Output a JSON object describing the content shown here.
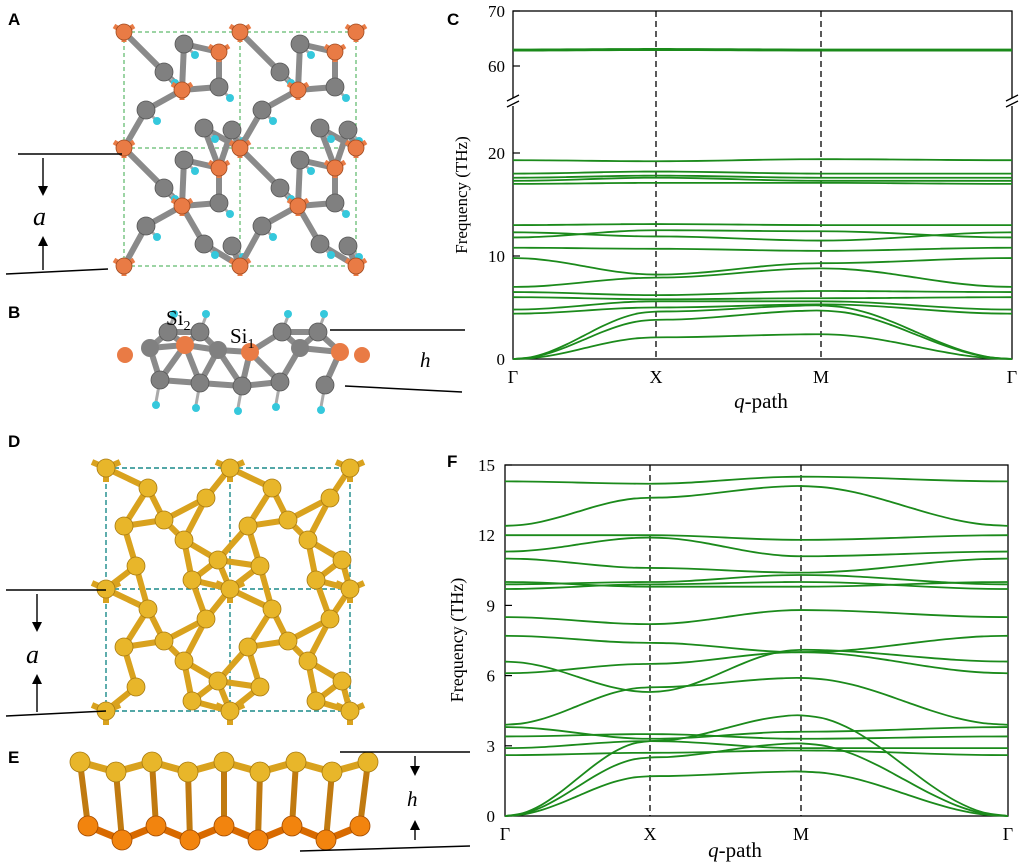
{
  "panels": {
    "a": {
      "letter": "A",
      "lattice_label": "a"
    },
    "b": {
      "letter": "B",
      "atom_labels": [
        "Si",
        "2",
        "Si",
        "1"
      ],
      "height_label": "h"
    },
    "c": {
      "letter": "C"
    },
    "d": {
      "letter": "D",
      "lattice_label": "a"
    },
    "e": {
      "letter": "E",
      "height_label": "h"
    },
    "f": {
      "letter": "F"
    }
  },
  "colors": {
    "si_atom": "#808080",
    "c_atom": "#e97b45",
    "h_atom": "#35c8dc",
    "gold_atom": "#e8b62a",
    "orange_atom": "#f2840e",
    "phonon_line": "#1b8a1b",
    "cell_line_a": "#3aa84a",
    "cell_line_d": "#1a8a8a"
  },
  "chart_data": [
    {
      "type": "line",
      "panel": "C",
      "title": "",
      "xlabel_italic": "q",
      "xlabel_rest": "-path",
      "ylabel": "Frequency (THz)",
      "x_ticks": [
        "Γ",
        "X",
        "M",
        "Γ"
      ],
      "y_ticks_lower": [
        "0",
        "10",
        "20"
      ],
      "y_ticks_upper": [
        "60",
        "70"
      ],
      "ylim_lower": [
        0,
        24
      ],
      "ylim_upper": [
        58,
        70
      ],
      "axis_break": true,
      "high_symbol_dividers": [
        "X",
        "M"
      ],
      "series": [
        {
          "values": [
            0,
            2.1,
            2.4,
            0
          ]
        },
        {
          "values": [
            0,
            3.8,
            4.7,
            0
          ]
        },
        {
          "values": [
            0,
            4.6,
            5.2,
            0
          ]
        },
        {
          "values": [
            4.4,
            5.0,
            5.3,
            4.4
          ]
        },
        {
          "values": [
            4.8,
            5.6,
            5.6,
            4.8
          ]
        },
        {
          "values": [
            6.0,
            5.8,
            5.9,
            6.0
          ]
        },
        {
          "values": [
            6.5,
            6.2,
            6.6,
            6.5
          ]
        },
        {
          "values": [
            7.0,
            7.9,
            8.8,
            7.0
          ]
        },
        {
          "values": [
            9.8,
            8.2,
            9.3,
            9.8
          ]
        },
        {
          "values": [
            10.8,
            10.7,
            10.5,
            10.8
          ]
        },
        {
          "values": [
            11.8,
            12.5,
            12.4,
            11.8
          ]
        },
        {
          "values": [
            12.3,
            11.9,
            11.5,
            12.3
          ]
        },
        {
          "values": [
            13.0,
            13.1,
            13.0,
            13.0
          ]
        },
        {
          "values": [
            17.0,
            17.1,
            17.1,
            17.0
          ]
        },
        {
          "values": [
            17.3,
            17.6,
            17.3,
            17.3
          ]
        },
        {
          "values": [
            17.6,
            17.8,
            17.6,
            17.6
          ]
        },
        {
          "values": [
            18.0,
            18.2,
            18.0,
            18.0
          ]
        },
        {
          "values": [
            19.3,
            19.2,
            19.4,
            19.3
          ]
        },
        {
          "values": [
            62.8,
            62.9,
            62.8,
            62.8
          ]
        },
        {
          "values": [
            63.0,
            63.1,
            63.0,
            63.0
          ]
        }
      ]
    },
    {
      "type": "line",
      "panel": "F",
      "title": "",
      "xlabel_italic": "q",
      "xlabel_rest": "-path",
      "ylabel": "Frequency (THz)",
      "x_ticks": [
        "Γ",
        "X",
        "M",
        "Γ"
      ],
      "y_ticks": [
        "0",
        "3",
        "6",
        "9",
        "12",
        "15"
      ],
      "ylim": [
        0,
        15
      ],
      "high_symbol_dividers": [
        "X",
        "M"
      ],
      "series": [
        {
          "values": [
            0,
            1.7,
            1.9,
            0
          ]
        },
        {
          "values": [
            0,
            2.5,
            3.1,
            0
          ]
        },
        {
          "values": [
            0,
            3.2,
            4.3,
            0
          ]
        },
        {
          "values": [
            2.6,
            2.7,
            2.8,
            2.6
          ]
        },
        {
          "values": [
            2.9,
            3.2,
            2.9,
            2.9
          ]
        },
        {
          "values": [
            3.4,
            3.5,
            3.3,
            3.4
          ]
        },
        {
          "values": [
            3.8,
            3.3,
            3.6,
            3.8
          ]
        },
        {
          "values": [
            3.9,
            5.5,
            5.9,
            3.9
          ]
        },
        {
          "values": [
            6.1,
            6.5,
            7.0,
            6.1
          ]
        },
        {
          "values": [
            6.6,
            5.3,
            7.1,
            6.6
          ]
        },
        {
          "values": [
            7.7,
            7.4,
            7.0,
            7.7
          ]
        },
        {
          "values": [
            8.5,
            8.2,
            8.8,
            8.5
          ]
        },
        {
          "values": [
            9.7,
            9.9,
            10.0,
            9.7
          ]
        },
        {
          "values": [
            9.9,
            10.0,
            10.3,
            9.9
          ]
        },
        {
          "values": [
            10.0,
            9.8,
            9.8,
            10.0
          ]
        },
        {
          "values": [
            11.0,
            10.6,
            10.4,
            11.0
          ]
        },
        {
          "values": [
            11.3,
            11.9,
            11.1,
            11.3
          ]
        },
        {
          "values": [
            12.0,
            12.0,
            11.8,
            12.0
          ]
        },
        {
          "values": [
            12.4,
            13.6,
            14.1,
            12.4
          ]
        },
        {
          "values": [
            14.3,
            14.2,
            14.5,
            14.3
          ]
        }
      ]
    }
  ]
}
